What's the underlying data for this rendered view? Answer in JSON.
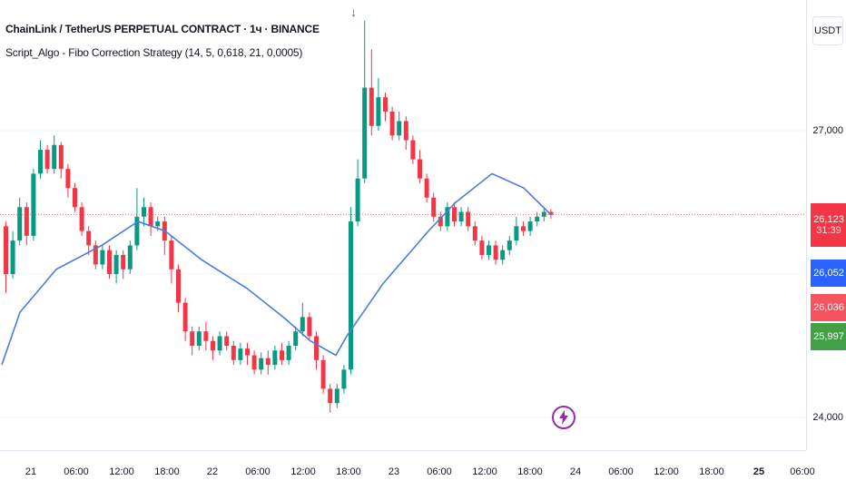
{
  "legend": {
    "title": "ChainLink / TetherUS PERPETUAL CONTRACT · 1ч · BINANCE",
    "indicator": "Script_Algo - Fibo Correction Strategy (14, 5, 0,618, 21, 0,0005)"
  },
  "price_scale": {
    "currency": "USDT",
    "ticks": [
      "27,000",
      "24,000"
    ],
    "labels": [
      {
        "text": "26,123",
        "sub": "31:39",
        "color": "#f23645"
      },
      {
        "text": "26,052",
        "color": "#2962ff"
      },
      {
        "text": "26,036",
        "color": "#f7525f"
      },
      {
        "text": "25,997",
        "color": "#43a047"
      }
    ]
  },
  "time_axis": {
    "ticks": [
      "21",
      "06:00",
      "12:00",
      "18:00",
      "22",
      "06:00",
      "12:00",
      "18:00",
      "23",
      "06:00",
      "12:00",
      "18:00",
      "24",
      "06:00",
      "12:00",
      "18:00",
      "25",
      "06:00"
    ]
  },
  "markers": {
    "arrow": "↓",
    "event_icon": "lightning-icon"
  },
  "colors": {
    "up": "#089981",
    "down": "#f23645",
    "ma": "#4a7ce0",
    "accent": "#9c27b0"
  },
  "chart_data": {
    "type": "candlestick",
    "title": "ChainLink / TetherUS PERPETUAL CONTRACT · 1ч · BINANCE",
    "ylim": [
      23.8,
      28.3
    ],
    "last_price": 26.123,
    "candles": [
      [
        26.0,
        25.5,
        26.05,
        25.3
      ],
      [
        25.5,
        25.85,
        25.95,
        25.45
      ],
      [
        25.85,
        26.2,
        26.3,
        25.8
      ],
      [
        26.2,
        25.9,
        26.25,
        25.8
      ],
      [
        25.9,
        26.55,
        26.6,
        25.85
      ],
      [
        26.55,
        26.8,
        26.9,
        26.5
      ],
      [
        26.8,
        26.6,
        26.85,
        26.55
      ],
      [
        26.6,
        26.85,
        26.95,
        26.55
      ],
      [
        26.85,
        26.6,
        26.88,
        26.5
      ],
      [
        26.6,
        26.4,
        26.65,
        26.3
      ],
      [
        26.4,
        26.2,
        26.45,
        26.15
      ],
      [
        26.2,
        25.95,
        26.25,
        25.9
      ],
      [
        25.95,
        25.8,
        26.0,
        25.7
      ],
      [
        25.8,
        25.6,
        25.85,
        25.55
      ],
      [
        25.6,
        25.75,
        25.8,
        25.55
      ],
      [
        25.75,
        25.5,
        25.8,
        25.45
      ],
      [
        25.5,
        25.7,
        25.75,
        25.4
      ],
      [
        25.7,
        25.55,
        25.75,
        25.45
      ],
      [
        25.55,
        25.8,
        25.85,
        25.5
      ],
      [
        25.8,
        26.1,
        26.4,
        25.75
      ],
      [
        26.1,
        26.2,
        26.3,
        26.0
      ],
      [
        26.2,
        26.0,
        26.25,
        25.9
      ],
      [
        26.0,
        26.05,
        26.1,
        25.95
      ],
      [
        26.05,
        25.85,
        26.1,
        25.7
      ],
      [
        25.85,
        25.55,
        25.9,
        25.4
      ],
      [
        25.55,
        25.2,
        25.6,
        25.1
      ],
      [
        25.2,
        24.9,
        25.25,
        24.8
      ],
      [
        24.9,
        24.75,
        24.95,
        24.65
      ],
      [
        24.75,
        24.9,
        24.95,
        24.7
      ],
      [
        24.9,
        24.8,
        25.0,
        24.7
      ],
      [
        24.8,
        24.7,
        24.85,
        24.6
      ],
      [
        24.7,
        24.85,
        24.9,
        24.65
      ],
      [
        24.85,
        24.75,
        24.9,
        24.7
      ],
      [
        24.75,
        24.6,
        24.8,
        24.55
      ],
      [
        24.6,
        24.72,
        24.78,
        24.55
      ],
      [
        24.72,
        24.65,
        24.78,
        24.55
      ],
      [
        24.65,
        24.5,
        24.7,
        24.45
      ],
      [
        24.5,
        24.62,
        24.68,
        24.45
      ],
      [
        24.62,
        24.55,
        24.7,
        24.45
      ],
      [
        24.55,
        24.7,
        24.75,
        24.5
      ],
      [
        24.7,
        24.6,
        24.78,
        24.55
      ],
      [
        24.6,
        24.75,
        24.8,
        24.55
      ],
      [
        24.75,
        24.9,
        24.95,
        24.7
      ],
      [
        24.9,
        25.05,
        25.2,
        24.85
      ],
      [
        25.05,
        24.85,
        25.1,
        24.8
      ],
      [
        24.85,
        24.6,
        24.9,
        24.5
      ],
      [
        24.6,
        24.3,
        24.65,
        24.25
      ],
      [
        24.3,
        24.15,
        24.35,
        24.05
      ],
      [
        24.15,
        24.3,
        24.35,
        24.1
      ],
      [
        24.3,
        24.5,
        24.55,
        24.25
      ],
      [
        24.5,
        26.05,
        26.2,
        24.45
      ],
      [
        26.05,
        26.5,
        26.7,
        26.0
      ],
      [
        26.5,
        27.45,
        28.15,
        26.45
      ],
      [
        27.45,
        27.05,
        27.85,
        26.95
      ],
      [
        27.05,
        27.35,
        27.55,
        27.0
      ],
      [
        27.35,
        27.2,
        27.4,
        27.1
      ],
      [
        27.2,
        26.95,
        27.25,
        26.9
      ],
      [
        26.95,
        27.1,
        27.2,
        26.9
      ],
      [
        27.1,
        26.9,
        27.15,
        26.8
      ],
      [
        26.9,
        26.7,
        26.95,
        26.65
      ],
      [
        26.7,
        26.5,
        26.8,
        26.45
      ],
      [
        26.5,
        26.3,
        26.55,
        26.25
      ],
      [
        26.3,
        26.1,
        26.35,
        26.05
      ],
      [
        26.1,
        26.0,
        26.15,
        25.95
      ],
      [
        26.0,
        26.2,
        26.25,
        25.95
      ],
      [
        26.2,
        26.05,
        26.25,
        26.0
      ],
      [
        26.05,
        26.15,
        26.2,
        26.0
      ],
      [
        26.15,
        26.0,
        26.2,
        25.95
      ],
      [
        26.0,
        25.85,
        26.05,
        25.8
      ],
      [
        25.85,
        25.7,
        25.9,
        25.65
      ],
      [
        25.7,
        25.8,
        25.85,
        25.65
      ],
      [
        25.8,
        25.65,
        25.85,
        25.6
      ],
      [
        25.65,
        25.75,
        25.8,
        25.6
      ],
      [
        25.75,
        25.85,
        25.9,
        25.7
      ],
      [
        25.85,
        26.0,
        26.1,
        25.8
      ],
      [
        26.0,
        25.95,
        26.05,
        25.9
      ],
      [
        25.95,
        26.05,
        26.1,
        25.9
      ],
      [
        26.05,
        26.1,
        26.15,
        26.0
      ],
      [
        26.1,
        26.15,
        26.2,
        26.05
      ],
      [
        26.15,
        26.12,
        26.18,
        26.08
      ]
    ],
    "moving_average": [
      [
        0,
        24.55
      ],
      [
        20,
        25.1
      ],
      [
        60,
        25.55
      ],
      [
        110,
        25.8
      ],
      [
        150,
        26.05
      ],
      [
        180,
        25.95
      ],
      [
        220,
        25.65
      ],
      [
        270,
        25.35
      ],
      [
        310,
        25.05
      ],
      [
        340,
        24.8
      ],
      [
        368,
        24.65
      ],
      [
        380,
        24.85
      ],
      [
        420,
        25.4
      ],
      [
        470,
        25.95
      ],
      [
        500,
        26.25
      ],
      [
        540,
        26.55
      ],
      [
        575,
        26.4
      ],
      [
        605,
        26.12
      ]
    ]
  }
}
